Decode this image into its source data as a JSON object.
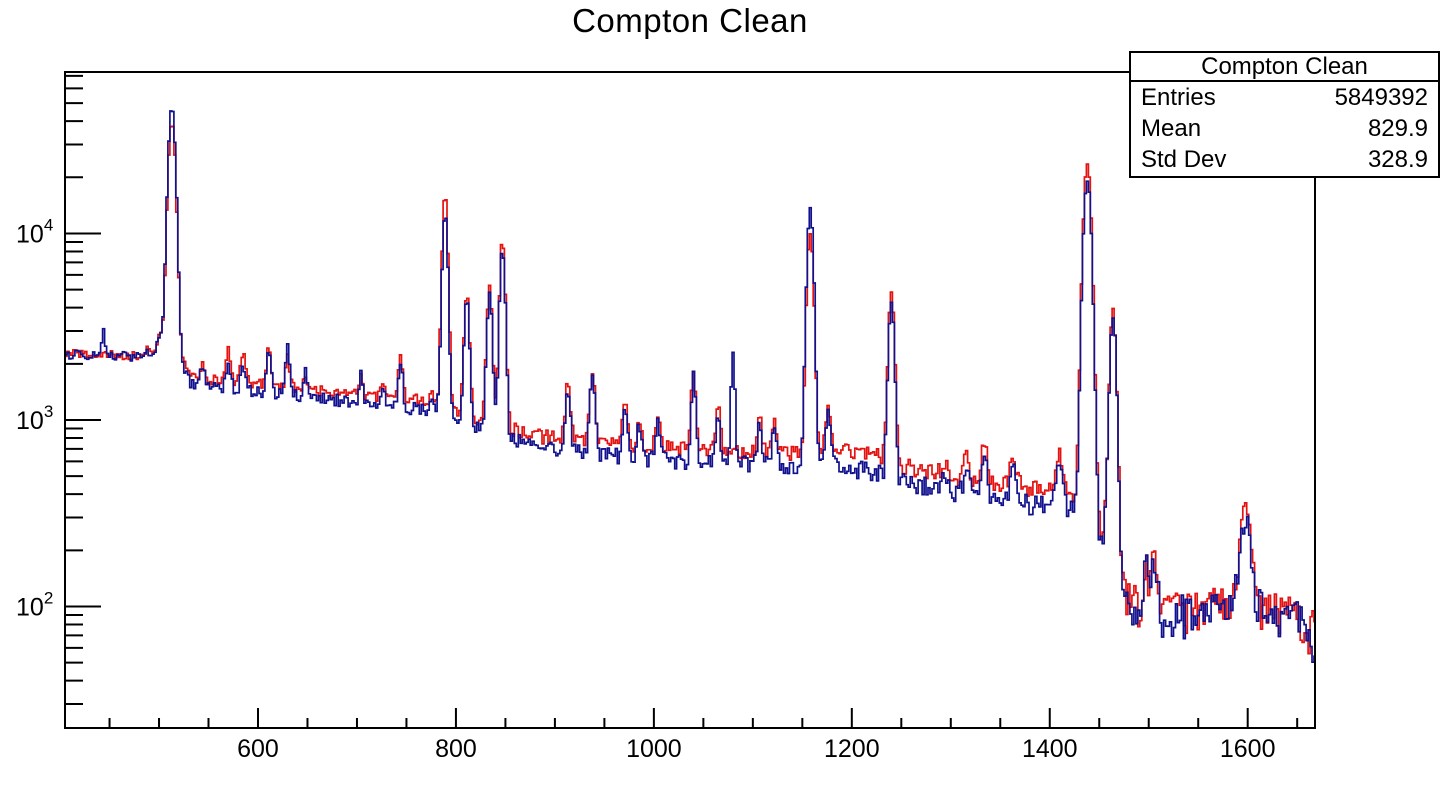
{
  "page_title": "Compton Clean",
  "stats_box": {
    "title": "Compton Clean",
    "rows": [
      {
        "label": "Entries",
        "value": "5849392"
      },
      {
        "label": "Mean",
        "value": "829.9"
      },
      {
        "label": "Std Dev",
        "value": "328.9"
      }
    ]
  },
  "chart_data": {
    "type": "line",
    "title": "Compton Clean",
    "xlabel": "",
    "ylabel": "",
    "x_range": [
      405,
      1668
    ],
    "y_range": [
      22.3,
      73400
    ],
    "y_scale": "log",
    "grid": false,
    "legend": "none",
    "x_major_ticks": [
      600,
      800,
      1000,
      1200,
      1400,
      1600
    ],
    "x_minor_step": 50,
    "y_major_ticks": [
      {
        "value": 100,
        "mantissa": "10",
        "exponent": "2"
      },
      {
        "value": 1000,
        "mantissa": "10",
        "exponent": "3"
      },
      {
        "value": 10000,
        "mantissa": "10",
        "exponent": "4"
      }
    ],
    "bin_width": 2,
    "noise_coeff": 2.6,
    "peaks": [
      {
        "x": 444,
        "sigma": 1.5,
        "red": null,
        "blue": 3000
      },
      {
        "x": 488,
        "sigma": 2.0,
        "red": 2380,
        "blue": 2300
      },
      {
        "x": 500,
        "sigma": 2.0,
        "red": 2600,
        "blue": 2520
      },
      {
        "x": 513,
        "sigma": 3.2,
        "red": 38000,
        "blue": 46000
      },
      {
        "x": 513,
        "sigma": 8.0,
        "red": 2900,
        "blue": 2800
      },
      {
        "x": 544,
        "sigma": 2.2,
        "red": 2000,
        "blue": 1900
      },
      {
        "x": 570,
        "sigma": 2.2,
        "red": 2460,
        "blue": 2060
      },
      {
        "x": 585,
        "sigma": 2.2,
        "red": 2260,
        "blue": 1980
      },
      {
        "x": 611,
        "sigma": 2.0,
        "red": 2480,
        "blue": 2300
      },
      {
        "x": 630,
        "sigma": 1.8,
        "red": 2250,
        "blue": 2560
      },
      {
        "x": 648,
        "sigma": 1.5,
        "red": 1700,
        "blue": 1860
      },
      {
        "x": 704,
        "sigma": 1.5,
        "red": 1820,
        "blue": 1820
      },
      {
        "x": 726,
        "sigma": 2.0,
        "red": 1620,
        "blue": 1500
      },
      {
        "x": 744,
        "sigma": 2.0,
        "red": 2160,
        "blue": 2060
      },
      {
        "x": 776,
        "sigma": 1.8,
        "red": 1420,
        "blue": 1310
      },
      {
        "x": 789,
        "sigma": 2.4,
        "red": 16100,
        "blue": 12900
      },
      {
        "x": 811,
        "sigma": 2.4,
        "red": 4700,
        "blue": 4400
      },
      {
        "x": 834,
        "sigma": 2.4,
        "red": 5300,
        "blue": 4750
      },
      {
        "x": 847,
        "sigma": 2.4,
        "red": 9250,
        "blue": 8200
      },
      {
        "x": 913,
        "sigma": 2.4,
        "red": 1530,
        "blue": 1460
      },
      {
        "x": 938,
        "sigma": 2.4,
        "red": 1790,
        "blue": 1710
      },
      {
        "x": 971,
        "sigma": 2.4,
        "red": 1170,
        "blue": 1090
      },
      {
        "x": 985,
        "sigma": 2.0,
        "red": 1020,
        "blue": 950
      },
      {
        "x": 1004,
        "sigma": 2.4,
        "red": 1090,
        "blue": 1010
      },
      {
        "x": 1040,
        "sigma": 2.0,
        "red": 1810,
        "blue": 1720
      },
      {
        "x": 1065,
        "sigma": 2.0,
        "red": 1170,
        "blue": 1060
      },
      {
        "x": 1080,
        "sigma": 1.8,
        "red": null,
        "blue": 2280
      },
      {
        "x": 1107,
        "sigma": 2.0,
        "red": 1030,
        "blue": 940
      },
      {
        "x": 1122,
        "sigma": 2.4,
        "red": 1020,
        "blue": 910
      },
      {
        "x": 1158,
        "sigma": 2.8,
        "red": 10100,
        "blue": 13600
      },
      {
        "x": 1176,
        "sigma": 2.4,
        "red": 1150,
        "blue": 1060
      },
      {
        "x": 1240,
        "sigma": 2.6,
        "red": 4980,
        "blue": 4150
      },
      {
        "x": 1294,
        "sigma": 2.5,
        "red": 565,
        "blue": 480
      },
      {
        "x": 1316,
        "sigma": 2.5,
        "red": 645,
        "blue": 545
      },
      {
        "x": 1334,
        "sigma": 2.5,
        "red": 765,
        "blue": 625
      },
      {
        "x": 1363,
        "sigma": 2.8,
        "red": 645,
        "blue": 545
      },
      {
        "x": 1410,
        "sigma": 2.8,
        "red": 690,
        "blue": 590
      },
      {
        "x": 1438,
        "sigma": 3.4,
        "red": 23900,
        "blue": 19400
      },
      {
        "x": 1464,
        "sigma": 2.8,
        "red": 3820,
        "blue": 3470
      },
      {
        "x": 1497,
        "sigma": 2.6,
        "red": 172,
        "blue": 162
      },
      {
        "x": 1506,
        "sigma": 2.6,
        "red": 182,
        "blue": 172
      },
      {
        "x": 1598,
        "sigma": 4.5,
        "red": 330,
        "blue": 302
      }
    ],
    "series": [
      {
        "name": "spectrum-red",
        "key": "red",
        "color": "#e41210",
        "noise_seed": 7,
        "baseline": [
          [
            405,
            2260
          ],
          [
            450,
            2230
          ],
          [
            495,
            2180
          ],
          [
            508,
            2050
          ],
          [
            518,
            1720
          ],
          [
            545,
            1650
          ],
          [
            575,
            1600
          ],
          [
            610,
            1540
          ],
          [
            640,
            1480
          ],
          [
            675,
            1420
          ],
          [
            710,
            1350
          ],
          [
            745,
            1300
          ],
          [
            775,
            1260
          ],
          [
            786,
            1230
          ],
          [
            797,
            1100
          ],
          [
            820,
            1010
          ],
          [
            842,
            960
          ],
          [
            858,
            890
          ],
          [
            885,
            820
          ],
          [
            920,
            780
          ],
          [
            955,
            750
          ],
          [
            990,
            720
          ],
          [
            1030,
            700
          ],
          [
            1070,
            690
          ],
          [
            1110,
            680
          ],
          [
            1150,
            665
          ],
          [
            1185,
            685
          ],
          [
            1215,
            660
          ],
          [
            1232,
            640
          ],
          [
            1248,
            580
          ],
          [
            1275,
            535
          ],
          [
            1305,
            505
          ],
          [
            1340,
            470
          ],
          [
            1375,
            440
          ],
          [
            1410,
            420
          ],
          [
            1428,
            400
          ],
          [
            1446,
            380
          ],
          [
            1451,
            215
          ],
          [
            1459,
            320
          ],
          [
            1468,
            150
          ],
          [
            1476,
            115
          ],
          [
            1490,
            100
          ],
          [
            1510,
            96
          ],
          [
            1535,
            94
          ],
          [
            1560,
            97
          ],
          [
            1585,
            108
          ],
          [
            1600,
            112
          ],
          [
            1615,
            100
          ],
          [
            1632,
            90
          ],
          [
            1650,
            86
          ],
          [
            1668,
            75
          ]
        ]
      },
      {
        "name": "spectrum-blue",
        "key": "blue",
        "color": "#11118e",
        "noise_seed": 13,
        "baseline": [
          [
            405,
            2250
          ],
          [
            450,
            2220
          ],
          [
            495,
            2160
          ],
          [
            508,
            2020
          ],
          [
            518,
            1570
          ],
          [
            545,
            1500
          ],
          [
            575,
            1460
          ],
          [
            610,
            1400
          ],
          [
            640,
            1350
          ],
          [
            675,
            1290
          ],
          [
            710,
            1220
          ],
          [
            745,
            1170
          ],
          [
            775,
            1130
          ],
          [
            786,
            1110
          ],
          [
            797,
            980
          ],
          [
            820,
            900
          ],
          [
            842,
            850
          ],
          [
            858,
            790
          ],
          [
            885,
            720
          ],
          [
            920,
            680
          ],
          [
            955,
            650
          ],
          [
            990,
            615
          ],
          [
            1030,
            600
          ],
          [
            1070,
            590
          ],
          [
            1110,
            575
          ],
          [
            1150,
            555
          ],
          [
            1185,
            560
          ],
          [
            1215,
            535
          ],
          [
            1232,
            515
          ],
          [
            1248,
            465
          ],
          [
            1275,
            440
          ],
          [
            1305,
            415
          ],
          [
            1340,
            385
          ],
          [
            1375,
            355
          ],
          [
            1410,
            345
          ],
          [
            1428,
            330
          ],
          [
            1446,
            320
          ],
          [
            1451,
            200
          ],
          [
            1459,
            300
          ],
          [
            1468,
            140
          ],
          [
            1476,
            110
          ],
          [
            1490,
            97
          ],
          [
            1510,
            93
          ],
          [
            1535,
            91
          ],
          [
            1560,
            94
          ],
          [
            1585,
            104
          ],
          [
            1600,
            108
          ],
          [
            1615,
            96
          ],
          [
            1632,
            87
          ],
          [
            1650,
            83
          ],
          [
            1660,
            72
          ],
          [
            1668,
            50
          ]
        ]
      }
    ]
  }
}
